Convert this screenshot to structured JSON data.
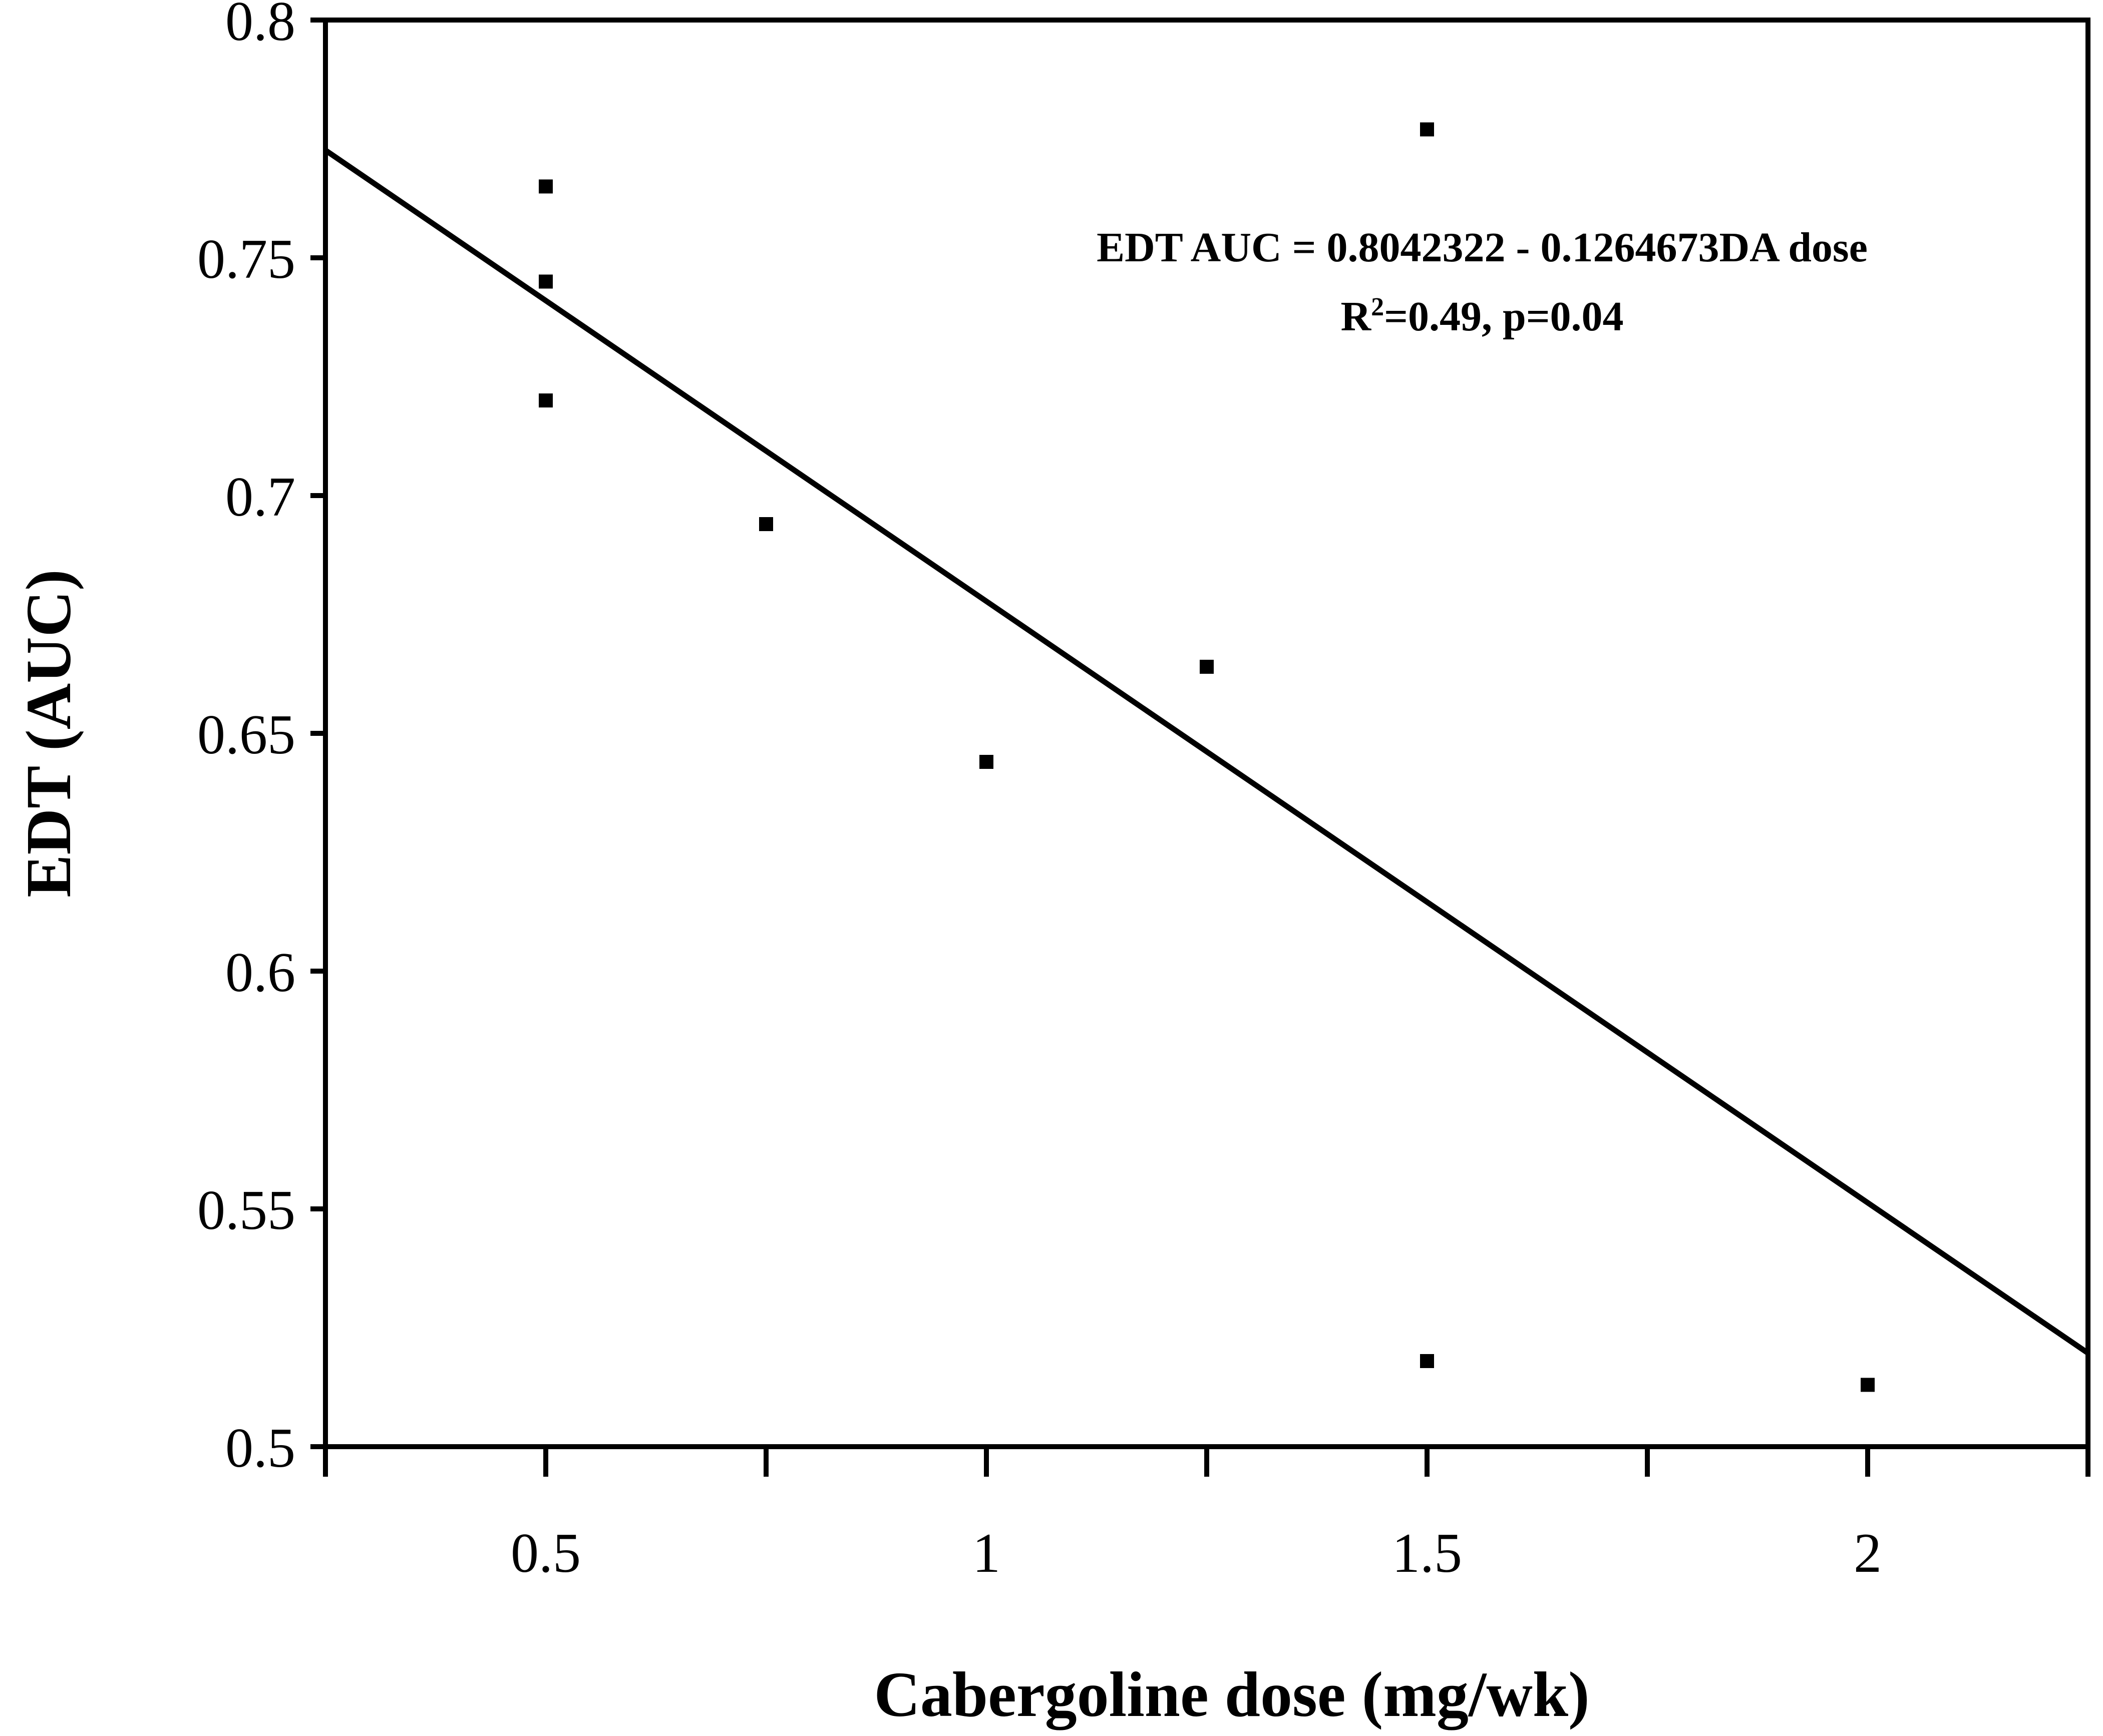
{
  "chart_data": {
    "type": "scatter",
    "xlabel": "Cabergoline dose (mg/wk)",
    "ylabel": "EDT (AUC)",
    "xlim": [
      0.25,
      2.25
    ],
    "ylim": [
      0.5,
      0.8
    ],
    "x_ticks": [
      0.5,
      1,
      1.5,
      2
    ],
    "x_tick_labels": [
      "0.5",
      "1",
      "1.5",
      "2"
    ],
    "x_minor_ticks": [
      0.25,
      0.75,
      1.25,
      1.75,
      2.25
    ],
    "y_ticks": [
      0.5,
      0.55,
      0.6,
      0.65,
      0.7,
      0.75,
      0.8
    ],
    "y_tick_labels": [
      "0.5",
      "0.55",
      "0.6",
      "0.65",
      "0.7",
      "0.75",
      "0.8"
    ],
    "grid": false,
    "points": [
      {
        "x": 0.5,
        "y": 0.765
      },
      {
        "x": 0.5,
        "y": 0.745
      },
      {
        "x": 0.5,
        "y": 0.72
      },
      {
        "x": 0.75,
        "y": 0.694
      },
      {
        "x": 1.0,
        "y": 0.644
      },
      {
        "x": 1.25,
        "y": 0.664
      },
      {
        "x": 1.5,
        "y": 0.777
      },
      {
        "x": 1.5,
        "y": 0.518
      },
      {
        "x": 2.0,
        "y": 0.513
      }
    ],
    "regression": {
      "intercept": 0.8042322,
      "slope": -0.1264673,
      "x_range": [
        0.25,
        2.25
      ]
    },
    "annotation": {
      "line1": "EDT AUC = 0.8042322 - 0.1264673DA dose",
      "line2_prefix": "R",
      "line2_sup": "2",
      "line2_suffix": "=0.49, p=0.04"
    }
  }
}
